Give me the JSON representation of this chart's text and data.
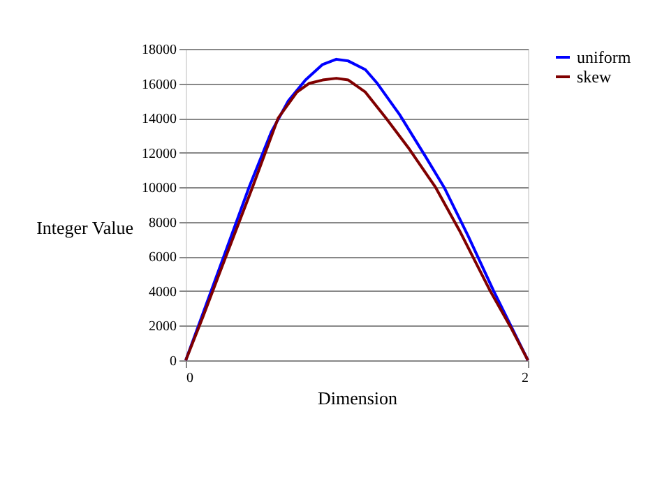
{
  "chart_data": {
    "type": "line",
    "xlabel": "Dimension",
    "ylabel": "Integer Value",
    "xlim": [
      0,
      2
    ],
    "xticks": [
      0,
      2
    ],
    "ylim": [
      0,
      18000
    ],
    "yticks": [
      0,
      2000,
      4000,
      6000,
      8000,
      10000,
      12000,
      14000,
      16000,
      18000
    ],
    "grid": "y",
    "legend": "right",
    "marker": "none",
    "line_style": "solid",
    "series": [
      {
        "name": "uniform",
        "color": "#0000ff",
        "x": [
          0,
          0.1,
          0.2,
          0.37,
          0.5,
          0.6,
          0.7,
          0.8,
          0.88,
          0.95,
          1.05,
          1.12,
          1.25,
          1.4,
          1.51,
          1.65,
          1.8,
          1.9,
          2
        ],
        "values": [
          0,
          2700,
          5400,
          10000,
          13200,
          15000,
          16200,
          17100,
          17400,
          17300,
          16800,
          16000,
          14200,
          11800,
          10000,
          7200,
          4000,
          2000,
          0
        ]
      },
      {
        "name": "skew",
        "color": "#800000",
        "x": [
          0,
          0.1,
          0.2,
          0.39,
          0.54,
          0.65,
          0.72,
          0.8,
          0.88,
          0.95,
          1.05,
          1.17,
          1.3,
          1.46,
          1.6,
          1.78,
          1.9,
          2
        ],
        "values": [
          0,
          2500,
          5100,
          10000,
          14000,
          15500,
          16000,
          16200,
          16300,
          16200,
          15500,
          14000,
          12300,
          10000,
          7500,
          4000,
          1900,
          0
        ]
      }
    ]
  }
}
